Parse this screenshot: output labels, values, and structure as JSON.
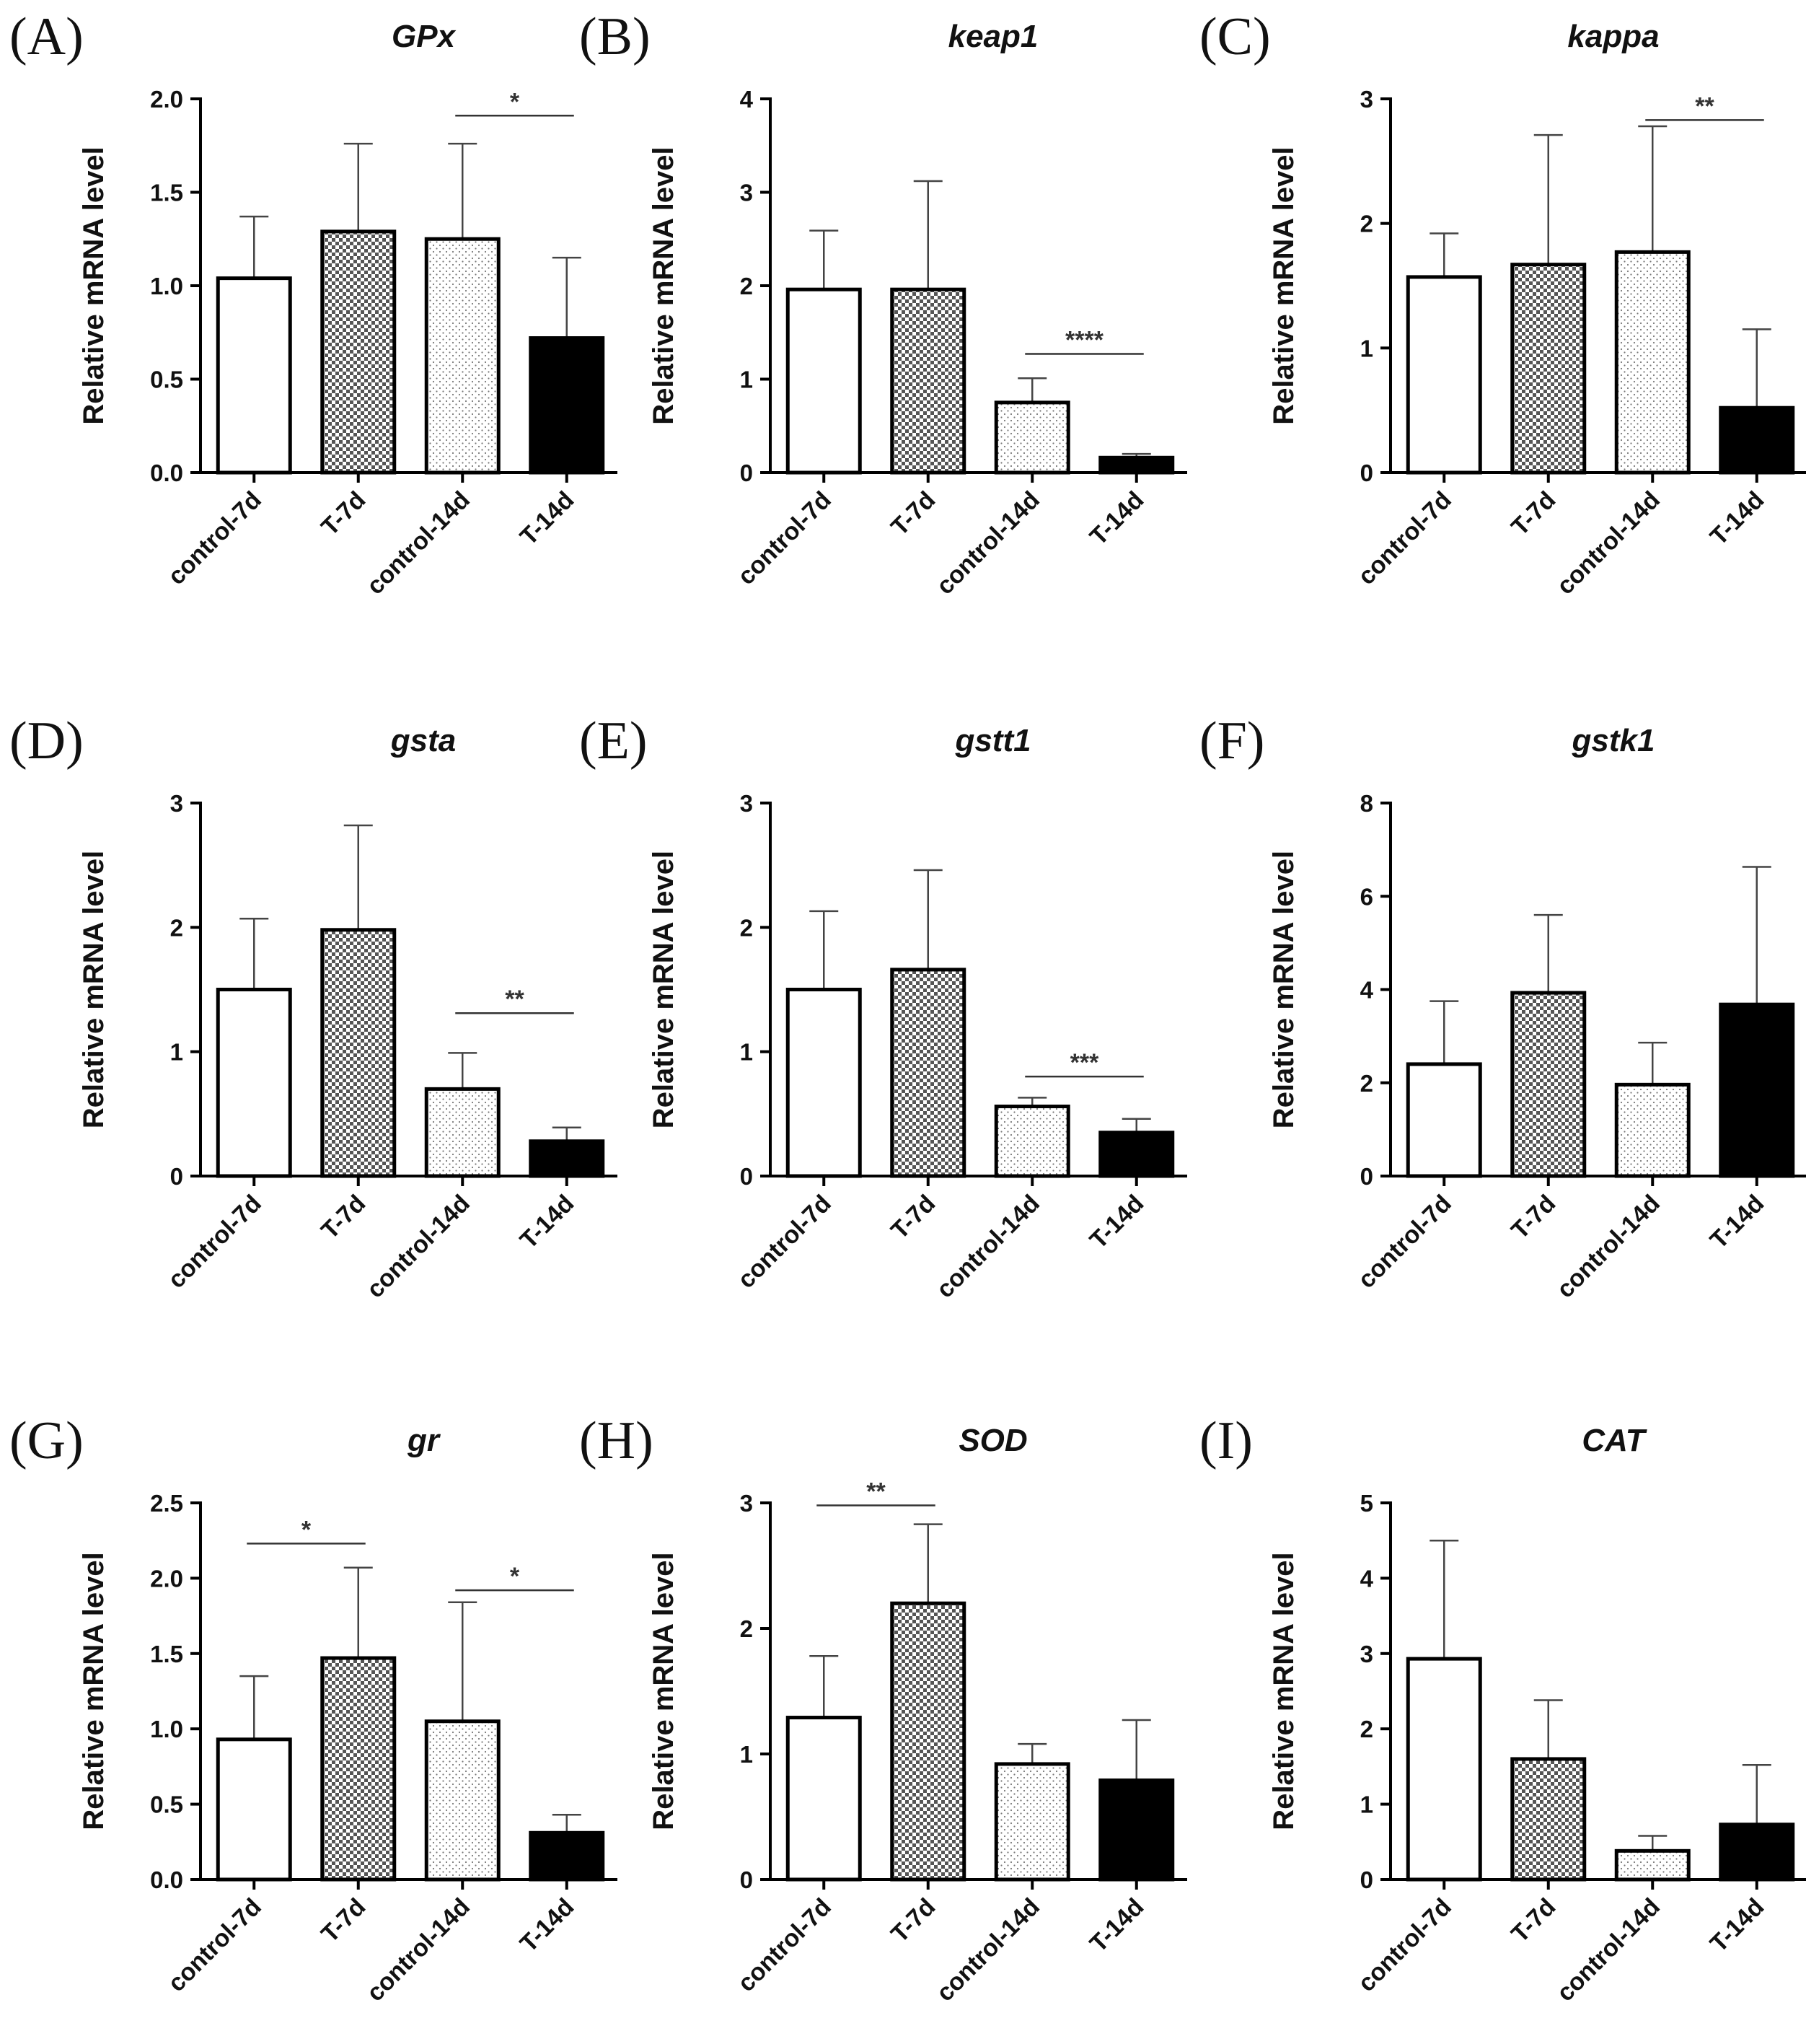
{
  "chart_data": [
    {
      "panel": "(A)",
      "type": "bar",
      "title": "GPx",
      "ylabel": "Relative mRNA level",
      "xlabel": "",
      "categories": [
        "control-7d",
        "T-7d",
        "control-14d",
        "T-14d"
      ],
      "values": [
        1.04,
        1.29,
        1.25,
        0.72
      ],
      "errors": [
        0.33,
        0.47,
        0.51,
        0.43
      ],
      "ylim": [
        0,
        2.0
      ],
      "yticks": [
        "0.0",
        "0.5",
        "1.0",
        "1.5",
        "2.0"
      ],
      "significance": [
        {
          "from": 2,
          "to": 3,
          "label": "*",
          "y": 1.91
        }
      ]
    },
    {
      "panel": "(B)",
      "type": "bar",
      "title": "keap1",
      "ylabel": "Relative mRNA level",
      "xlabel": "",
      "categories": [
        "control-7d",
        "T-7d",
        "control-14d",
        "T-14d"
      ],
      "values": [
        1.96,
        1.96,
        0.75,
        0.16
      ],
      "errors": [
        0.63,
        1.16,
        0.26,
        0.04
      ],
      "ylim": [
        0,
        4
      ],
      "yticks": [
        "0",
        "1",
        "2",
        "3",
        "4"
      ],
      "significance": [
        {
          "from": 2,
          "to": 3,
          "label": "****",
          "y": 1.27
        }
      ]
    },
    {
      "panel": "(C)",
      "type": "bar",
      "title": "kappa",
      "ylabel": "Relative mRNA level",
      "xlabel": "",
      "categories": [
        "control-7d",
        "T-7d",
        "control-14d",
        "T-14d"
      ],
      "values": [
        1.57,
        1.67,
        1.77,
        0.52
      ],
      "errors": [
        0.35,
        1.04,
        1.01,
        0.63
      ],
      "ylim": [
        0,
        3
      ],
      "yticks": [
        "0",
        "1",
        "2",
        "3"
      ],
      "significance": [
        {
          "from": 2,
          "to": 3,
          "label": "**",
          "y": 2.83
        }
      ]
    },
    {
      "panel": "(D)",
      "type": "bar",
      "title": "gsta",
      "ylabel": "Relative mRNA level",
      "xlabel": "",
      "categories": [
        "control-7d",
        "T-7d",
        "control-14d",
        "T-14d"
      ],
      "values": [
        1.5,
        1.98,
        0.7,
        0.28
      ],
      "errors": [
        0.57,
        0.84,
        0.29,
        0.11
      ],
      "ylim": [
        0,
        3
      ],
      "yticks": [
        "0",
        "1",
        "2",
        "3"
      ],
      "significance": [
        {
          "from": 2,
          "to": 3,
          "label": "**",
          "y": 1.31
        }
      ]
    },
    {
      "panel": "(E)",
      "type": "bar",
      "title": "gstt1",
      "ylabel": "Relative mRNA level",
      "xlabel": "",
      "categories": [
        "control-7d",
        "T-7d",
        "control-14d",
        "T-14d"
      ],
      "values": [
        1.5,
        1.66,
        0.56,
        0.35
      ],
      "errors": [
        0.63,
        0.8,
        0.07,
        0.11
      ],
      "ylim": [
        0,
        3
      ],
      "yticks": [
        "0",
        "1",
        "2",
        "3"
      ],
      "significance": [
        {
          "from": 2,
          "to": 3,
          "label": "***",
          "y": 0.8
        }
      ]
    },
    {
      "panel": "(F)",
      "type": "bar",
      "title": "gstk1",
      "ylabel": "Relative mRNA level",
      "xlabel": "",
      "categories": [
        "control-7d",
        "T-7d",
        "control-14d",
        "T-14d"
      ],
      "values": [
        2.4,
        3.93,
        1.96,
        3.68
      ],
      "errors": [
        1.35,
        1.67,
        0.9,
        2.95
      ],
      "ylim": [
        0,
        8
      ],
      "yticks": [
        "0",
        "2",
        "4",
        "6",
        "8"
      ],
      "significance": []
    },
    {
      "panel": "(G)",
      "type": "bar",
      "title": "gr",
      "ylabel": "Relative mRNA level",
      "xlabel": "",
      "categories": [
        "control-7d",
        "T-7d",
        "control-14d",
        "T-14d"
      ],
      "values": [
        0.93,
        1.47,
        1.05,
        0.31
      ],
      "errors": [
        0.42,
        0.6,
        0.79,
        0.12
      ],
      "ylim": [
        0,
        2.5
      ],
      "yticks": [
        "0.0",
        "0.5",
        "1.0",
        "1.5",
        "2.0",
        "2.5"
      ],
      "significance": [
        {
          "from": 0,
          "to": 1,
          "label": "*",
          "y": 2.23
        },
        {
          "from": 2,
          "to": 3,
          "label": "*",
          "y": 1.92
        }
      ]
    },
    {
      "panel": "(H)",
      "type": "bar",
      "title": "SOD",
      "ylabel": "Relative mRNA level",
      "xlabel": "",
      "categories": [
        "control-7d",
        "T-7d",
        "control-14d",
        "T-14d"
      ],
      "values": [
        1.29,
        2.2,
        0.92,
        0.79
      ],
      "errors": [
        0.49,
        0.63,
        0.16,
        0.48
      ],
      "ylim": [
        0,
        3
      ],
      "yticks": [
        "0",
        "1",
        "2",
        "3"
      ],
      "significance": [
        {
          "from": 0,
          "to": 1,
          "label": "**",
          "y": 2.98
        }
      ]
    },
    {
      "panel": "(I)",
      "type": "bar",
      "title": "CAT",
      "ylabel": "Relative mRNA level",
      "xlabel": "",
      "categories": [
        "control-7d",
        "T-7d",
        "control-14d",
        "T-14d"
      ],
      "values": [
        2.93,
        1.6,
        0.38,
        0.73
      ],
      "errors": [
        1.57,
        0.78,
        0.2,
        0.79
      ],
      "ylim": [
        0,
        5
      ],
      "yticks": [
        "0",
        "1",
        "2",
        "3",
        "4",
        "5"
      ],
      "significance": []
    }
  ],
  "colors": {
    "bar_outline": "#000000",
    "t14_fill": "#000000",
    "control7_fill": "#ffffff",
    "axis": "#000000",
    "sig_line": "#333333"
  }
}
